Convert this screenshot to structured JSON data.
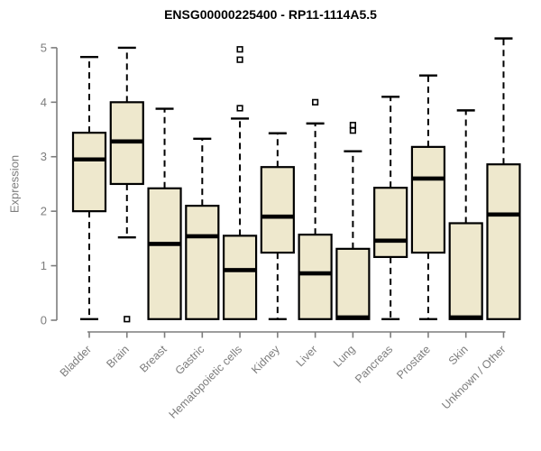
{
  "window": {
    "title": "ENSG00000225400 - RP11-1114A5.5"
  },
  "colors": {
    "box_fill": "#EEE8CD",
    "box_stroke": "#000000",
    "median_stroke": "#000000",
    "axis_gray": "#7d7d7d",
    "title_color": "#000000",
    "outlier_fill": "#ffffff"
  },
  "chart_data": {
    "type": "boxplot",
    "title": "ENSG00000225400 - RP11-1114A5.5",
    "xlabel": "",
    "ylabel": "Expression",
    "ylim": [
      0,
      5.2
    ],
    "yticks": [
      0,
      1,
      2,
      3,
      4,
      5
    ],
    "grid": false,
    "legend": "none",
    "categories": [
      "Bladder",
      "Brain",
      "Breast",
      "Gastric",
      "Hematopoietic cells",
      "Kidney",
      "Liver",
      "Lung",
      "Pancreas",
      "Prostate",
      "Skin",
      "Unknown / Other"
    ],
    "series": [
      {
        "name": "Bladder",
        "whisker_low": 0.02,
        "q1": 2.0,
        "median": 2.95,
        "q3": 3.44,
        "whisker_high": 4.83,
        "outliers": []
      },
      {
        "name": "Brain",
        "whisker_low": 1.52,
        "q1": 2.5,
        "median": 3.28,
        "q3": 4.0,
        "whisker_high": 5.0,
        "outliers": [
          0.02
        ]
      },
      {
        "name": "Breast",
        "whisker_low": 0.02,
        "q1": 0.02,
        "median": 1.4,
        "q3": 2.42,
        "whisker_high": 3.88,
        "outliers": []
      },
      {
        "name": "Gastric",
        "whisker_low": 0.02,
        "q1": 0.02,
        "median": 1.54,
        "q3": 2.1,
        "whisker_high": 3.33,
        "outliers": []
      },
      {
        "name": "Hematopoietic cells",
        "whisker_low": 0.02,
        "q1": 0.02,
        "median": 0.92,
        "q3": 1.55,
        "whisker_high": 3.7,
        "outliers": [
          3.89,
          4.78,
          4.97
        ]
      },
      {
        "name": "Kidney",
        "whisker_low": 0.02,
        "q1": 1.24,
        "median": 1.9,
        "q3": 2.81,
        "whisker_high": 3.43,
        "outliers": []
      },
      {
        "name": "Liver",
        "whisker_low": 0.02,
        "q1": 0.02,
        "median": 0.86,
        "q3": 1.57,
        "whisker_high": 3.61,
        "outliers": [
          4.0
        ]
      },
      {
        "name": "Lung",
        "whisker_low": 0.02,
        "q1": 0.02,
        "median": 0.05,
        "q3": 1.31,
        "whisker_high": 3.1,
        "outliers": [
          3.48,
          3.58
        ]
      },
      {
        "name": "Pancreas",
        "whisker_low": 0.02,
        "q1": 1.16,
        "median": 1.46,
        "q3": 2.43,
        "whisker_high": 4.1,
        "outliers": []
      },
      {
        "name": "Prostate",
        "whisker_low": 0.02,
        "q1": 1.24,
        "median": 2.6,
        "q3": 3.18,
        "whisker_high": 4.49,
        "outliers": []
      },
      {
        "name": "Skin",
        "whisker_low": 0.02,
        "q1": 0.02,
        "median": 0.05,
        "q3": 1.78,
        "whisker_high": 3.85,
        "outliers": []
      },
      {
        "name": "Unknown / Other",
        "whisker_low": 0.02,
        "q1": 0.02,
        "median": 1.94,
        "q3": 2.86,
        "whisker_high": 5.17,
        "outliers": []
      }
    ]
  }
}
